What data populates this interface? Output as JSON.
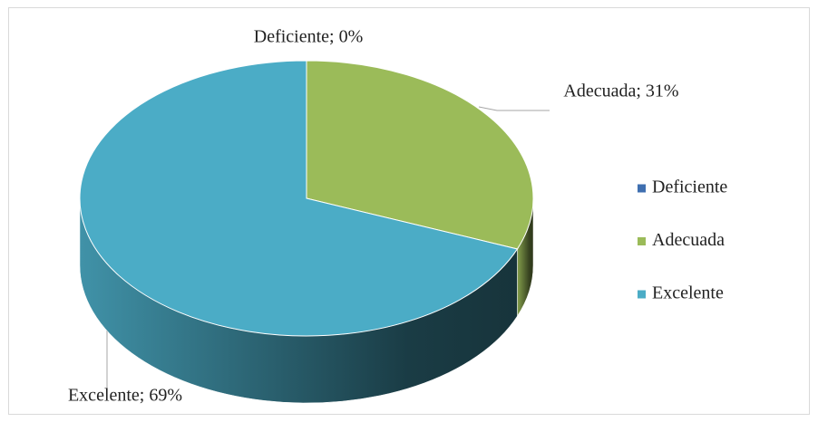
{
  "chart_data": {
    "type": "pie",
    "categories": [
      "Deficiente",
      "Adecuada",
      "Excelente"
    ],
    "values": [
      0,
      31,
      69
    ],
    "value_labels": [
      "Deficiente; 0%",
      "Adecuada; 31%",
      "Excelente; 69%"
    ],
    "colors": [
      "#3f6fb0",
      "#9bbb59",
      "#4bacc6"
    ],
    "legend": "right"
  }
}
